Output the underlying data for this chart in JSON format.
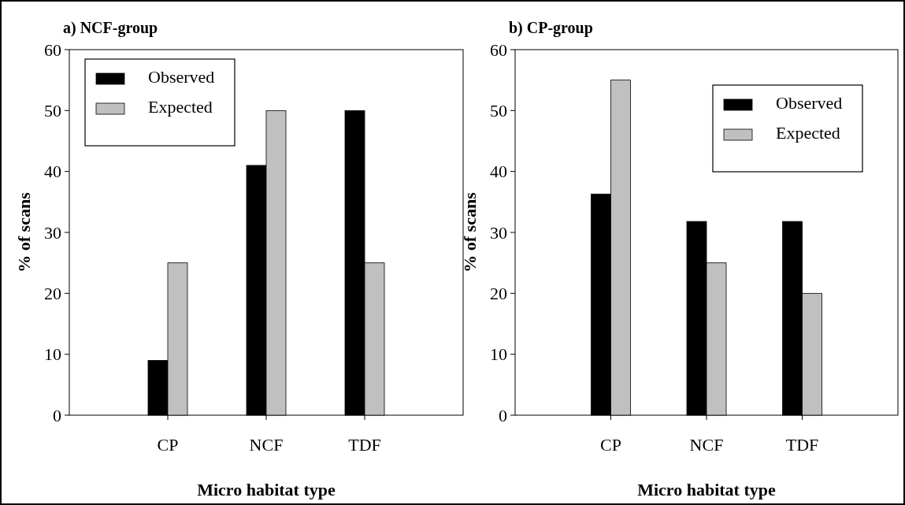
{
  "chart_data": [
    {
      "type": "bar",
      "title": "a) NCF-group",
      "xlabel": "Micro habitat type",
      "ylabel": "% of scans",
      "categories": [
        "CP",
        "NCF",
        "TDF"
      ],
      "series": [
        {
          "name": "Observed",
          "color": "#000000",
          "values": [
            9,
            41,
            50
          ]
        },
        {
          "name": "Expected",
          "color": "#c0c0c0",
          "values": [
            25,
            50,
            25
          ]
        }
      ],
      "ylim": [
        0,
        60
      ],
      "yticks": [
        0,
        10,
        20,
        30,
        40,
        50,
        60
      ],
      "legend": "top left"
    },
    {
      "type": "bar",
      "title": "b) CP-group",
      "xlabel": "Micro habitat type",
      "ylabel": "% of scans",
      "categories": [
        "CP",
        "NCF",
        "TDF"
      ],
      "series": [
        {
          "name": "Observed",
          "color": "#000000",
          "values": [
            36.3,
            31.8,
            31.8
          ]
        },
        {
          "name": "Expected",
          "color": "#c0c0c0",
          "values": [
            55,
            25,
            20
          ]
        }
      ],
      "ylim": [
        0,
        60
      ],
      "yticks": [
        0,
        10,
        20,
        30,
        40,
        50,
        60
      ],
      "legend": "top right"
    }
  ]
}
